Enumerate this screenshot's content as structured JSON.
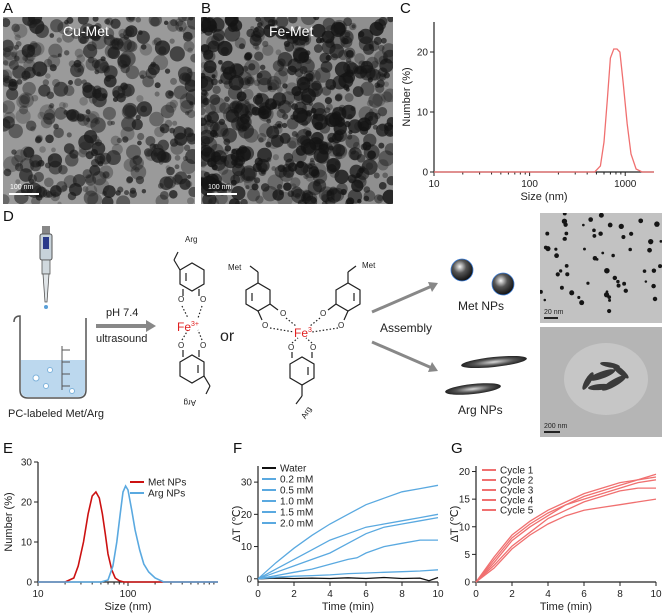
{
  "panels": {
    "A": {
      "label": "A",
      "title": "Cu-Met",
      "scale": "100 nm"
    },
    "B": {
      "label": "B",
      "title": "Fe-Met",
      "scale": "100 nm"
    },
    "C": {
      "label": "C"
    },
    "D": {
      "label": "D"
    },
    "E": {
      "label": "E"
    },
    "F": {
      "label": "F"
    },
    "G": {
      "label": "G"
    }
  },
  "scheme": {
    "beaker_caption": "PC-labeled Met/Arg",
    "cond_top": "pH 7.4",
    "cond_bottom": "ultrasound",
    "or_text": "or",
    "fe3": "Fe",
    "fe3_sup": "3+",
    "fe3b": "Fe",
    "fe3b_sup": "3",
    "assembly": "Assembly",
    "met_nps": "Met NPs",
    "arg_nps": "Arg NPs",
    "arg_label": "Arg",
    "met_label": "Met",
    "tem1_scale": "20 nm",
    "tem2_scale": "200 nm"
  },
  "chart_data": [
    {
      "id": "C",
      "type": "line",
      "xlabel": "Size (nm)",
      "ylabel": "Number (%)",
      "xscale": "log",
      "xlim": [
        10,
        2000
      ],
      "ylim": [
        0,
        25
      ],
      "xticks": [
        10,
        100,
        1000
      ],
      "yticks": [
        0,
        10,
        20
      ],
      "series": [
        {
          "color": "#f07070",
          "x": [
            10,
            400,
            480,
            550,
            600,
            650,
            700,
            760,
            820,
            880,
            950,
            1050,
            1150,
            1300,
            1500,
            1800,
            2000
          ],
          "y": [
            0,
            0,
            0,
            1,
            5,
            12,
            19,
            20.5,
            20.5,
            20,
            15,
            8,
            3,
            0.5,
            0,
            0,
            0
          ]
        }
      ]
    },
    {
      "id": "E",
      "type": "line",
      "xlabel": "Size (nm)",
      "ylabel": "Number (%)",
      "xscale": "log",
      "xlim": [
        10,
        1000
      ],
      "ylim": [
        0,
        30
      ],
      "xticks": [
        10,
        100
      ],
      "yticks": [
        0,
        10,
        20,
        30
      ],
      "series": [
        {
          "name": "Met NPs",
          "color": "#cc1111",
          "x": [
            10,
            20,
            25,
            28,
            32,
            36,
            40,
            44,
            48,
            52,
            56,
            60,
            66,
            72,
            80,
            90,
            100,
            1000
          ],
          "y": [
            0,
            0,
            1,
            4,
            10,
            17,
            21.5,
            22.5,
            21,
            17,
            12,
            7,
            3,
            1,
            0.3,
            0,
            0,
            0
          ]
        },
        {
          "name": "Arg NPs",
          "color": "#5aa9e0",
          "x": [
            10,
            50,
            60,
            68,
            75,
            82,
            88,
            94,
            100,
            110,
            120,
            135,
            150,
            170,
            200,
            250,
            1000
          ],
          "y": [
            0,
            0,
            0.5,
            4,
            10,
            17,
            22.5,
            24,
            23,
            18,
            13,
            8,
            4.5,
            2.5,
            1,
            0,
            0
          ]
        }
      ]
    },
    {
      "id": "F",
      "type": "line",
      "xlabel": "Time (min)",
      "ylabel": "ΔT (℃)",
      "xlim": [
        0,
        10
      ],
      "ylim": [
        -1,
        35
      ],
      "xticks": [
        0,
        2,
        4,
        6,
        8,
        10
      ],
      "yticks": [
        0,
        10,
        20,
        30
      ],
      "series": [
        {
          "name": "Water",
          "color": "#111111",
          "x": [
            0,
            1,
            2,
            3,
            4,
            5,
            6,
            7,
            8,
            9,
            9.5,
            10
          ],
          "y": [
            0,
            0.2,
            0.1,
            0.2,
            0.1,
            0.3,
            0.1,
            0.4,
            0.1,
            0.2,
            -0.6,
            0.4
          ]
        },
        {
          "name": "0.2 mM",
          "color": "#5aa9e0",
          "x": [
            0,
            1,
            2,
            3,
            4,
            5,
            6,
            7,
            8,
            9,
            10
          ],
          "y": [
            0,
            0.5,
            0.8,
            1,
            1.2,
            1.6,
            1.8,
            2,
            2.2,
            2.4,
            2.8
          ]
        },
        {
          "name": "0.5 mM",
          "color": "#5aa9e0",
          "x": [
            0,
            1,
            2,
            3,
            4,
            5,
            5.5,
            6,
            7,
            8,
            9,
            10
          ],
          "y": [
            0,
            1,
            2,
            3,
            4.5,
            6,
            6.5,
            8,
            10,
            11,
            12,
            12
          ]
        },
        {
          "name": "1.0 mM",
          "color": "#5aa9e0",
          "x": [
            0,
            1,
            2,
            3,
            4,
            5,
            6,
            7,
            8,
            9,
            10
          ],
          "y": [
            0,
            2,
            4,
            6,
            8,
            11,
            14,
            16,
            17,
            18,
            19
          ]
        },
        {
          "name": "1.5 mM",
          "color": "#5aa9e0",
          "x": [
            0,
            1,
            2,
            3,
            4,
            5,
            6,
            7,
            8,
            9,
            10
          ],
          "y": [
            0,
            3,
            6,
            9,
            12,
            14,
            16,
            17,
            18,
            19,
            20
          ]
        },
        {
          "name": "2.0 mM",
          "color": "#5aa9e0",
          "x": [
            0,
            1,
            2,
            3,
            4,
            5,
            6,
            7,
            8,
            9,
            10
          ],
          "y": [
            0,
            5,
            9.5,
            13.5,
            17,
            20,
            23,
            25,
            27,
            28,
            29
          ]
        }
      ]
    },
    {
      "id": "G",
      "type": "line",
      "xlabel": "Time (min)",
      "ylabel": "ΔT (℃)",
      "xlim": [
        0,
        10
      ],
      "ylim": [
        0,
        21
      ],
      "xticks": [
        0,
        2,
        4,
        6,
        8,
        10
      ],
      "yticks": [
        0,
        5,
        10,
        15,
        20
      ],
      "series": [
        {
          "name": "Cycle 1",
          "color": "#f07070",
          "x": [
            0,
            1,
            2,
            3,
            4,
            5,
            6,
            7,
            8,
            9,
            10
          ],
          "y": [
            0,
            4.5,
            8.5,
            11,
            13,
            14.5,
            16,
            17,
            18,
            18.5,
            19
          ]
        },
        {
          "name": "Cycle 2",
          "color": "#f07070",
          "x": [
            0,
            1,
            2,
            3,
            4,
            5,
            6,
            7,
            8,
            9,
            10
          ],
          "y": [
            0,
            4,
            8,
            10.5,
            12.5,
            14,
            15.5,
            16.5,
            17.5,
            18.5,
            19.5
          ]
        },
        {
          "name": "Cycle 3",
          "color": "#f07070",
          "x": [
            0,
            1,
            2,
            3,
            4,
            5,
            6,
            7,
            8,
            9,
            10
          ],
          "y": [
            0,
            3.5,
            7.5,
            10,
            12,
            14,
            15,
            16,
            17,
            18,
            18.5
          ]
        },
        {
          "name": "Cycle 4",
          "color": "#f07070",
          "x": [
            0,
            1,
            2,
            3,
            4,
            5,
            6,
            7,
            8,
            9,
            10
          ],
          "y": [
            0,
            3,
            6.5,
            9,
            11.5,
            13,
            14.5,
            15.5,
            16.5,
            17,
            17
          ]
        },
        {
          "name": "Cycle 5",
          "color": "#f07070",
          "x": [
            0,
            1,
            2,
            3,
            4,
            5,
            6,
            7,
            8,
            9,
            10
          ],
          "y": [
            0,
            2.5,
            6,
            8.5,
            10.5,
            12,
            13,
            13.5,
            14,
            14.5,
            15
          ]
        }
      ]
    }
  ]
}
